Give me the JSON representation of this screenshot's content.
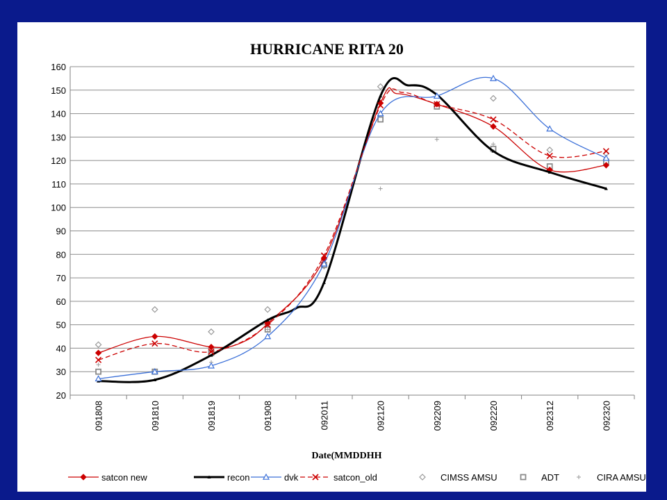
{
  "chart_data": {
    "type": "line",
    "title": "HURRICANE RITA 20",
    "xlabel": "Date(MMDDHH",
    "ylabel": "",
    "ylim": [
      20,
      160
    ],
    "yticks": [
      20,
      30,
      40,
      50,
      60,
      70,
      80,
      90,
      100,
      110,
      120,
      130,
      140,
      150,
      160
    ],
    "categories": [
      "091808",
      "091810",
      "091819",
      "091908",
      "092011",
      "092120",
      "092209",
      "092220",
      "092312",
      "092320"
    ],
    "grid": "horizontal",
    "legend_position": "bottom",
    "series": [
      {
        "name": "satcon new",
        "color": "#cc0000",
        "style": "line-marker",
        "marker": "diamond-filled",
        "dash": "solid",
        "points": [
          [
            0,
            38
          ],
          [
            1,
            45
          ],
          [
            2,
            40.5
          ],
          [
            2.5,
            42
          ],
          [
            3,
            50.5
          ],
          [
            4,
            78
          ],
          [
            5,
            144.5
          ],
          [
            5.3,
            148.5
          ],
          [
            6,
            144
          ],
          [
            7,
            134.5
          ],
          [
            8,
            116
          ],
          [
            9,
            118
          ]
        ]
      },
      {
        "name": "recon",
        "color": "#000000",
        "style": "line-marker",
        "marker": "small-triangle",
        "dash": "solid",
        "width": 3,
        "points": [
          [
            0,
            26
          ],
          [
            1,
            26.5
          ],
          [
            2,
            37
          ],
          [
            3,
            52
          ],
          [
            3.5,
            57
          ],
          [
            4,
            68
          ],
          [
            5,
            147.5
          ],
          [
            5.5,
            152
          ],
          [
            6,
            148
          ],
          [
            7,
            124
          ],
          [
            8,
            115
          ],
          [
            9,
            108
          ]
        ]
      },
      {
        "name": "dvk",
        "color": "#3a6fd8",
        "style": "line-marker",
        "marker": "triangle-open",
        "dash": "solid",
        "points": [
          [
            0,
            27
          ],
          [
            1,
            30
          ],
          [
            2,
            32.5
          ],
          [
            3,
            45
          ],
          [
            4,
            76
          ],
          [
            5,
            140
          ],
          [
            6,
            147.5
          ],
          [
            7,
            155
          ],
          [
            8,
            133.5
          ],
          [
            9,
            121
          ]
        ]
      },
      {
        "name": "satcon_old",
        "color": "#cc0000",
        "style": "line-marker",
        "marker": "x",
        "dash": "dashed",
        "points": [
          [
            0,
            35
          ],
          [
            1,
            42
          ],
          [
            2,
            38.5
          ],
          [
            3,
            50
          ],
          [
            4,
            79.5
          ],
          [
            5,
            143.5
          ],
          [
            5.4,
            149
          ],
          [
            6,
            144
          ],
          [
            7,
            137.5
          ],
          [
            8,
            122
          ],
          [
            9,
            124
          ]
        ]
      },
      {
        "name": "CIMSS AMSU",
        "color": "#999999",
        "style": "marker-only",
        "marker": "diamond-open",
        "points": [
          [
            0,
            41.5
          ],
          [
            1,
            56.5
          ],
          [
            2,
            47
          ],
          [
            3,
            56.5
          ],
          [
            4,
            75
          ],
          [
            5,
            151.5
          ],
          [
            6,
            144
          ],
          [
            7,
            146.5
          ],
          [
            8,
            124.5
          ],
          [
            9,
            123
          ]
        ]
      },
      {
        "name": "ADT",
        "color": "#8a8a8a",
        "style": "marker-only",
        "marker": "square-open",
        "points": [
          [
            0,
            30
          ],
          [
            1,
            30
          ],
          [
            2,
            38
          ],
          [
            3,
            48
          ],
          [
            4,
            75.5
          ],
          [
            5,
            137.5
          ],
          [
            6,
            143
          ],
          [
            7,
            125
          ],
          [
            8,
            117.5
          ],
          [
            9,
            119.5
          ]
        ]
      },
      {
        "name": "CIRA AMSU",
        "color": "#999999",
        "style": "marker-only",
        "marker": "plus",
        "points": [
          [
            0,
            33
          ],
          [
            2,
            34
          ],
          [
            3,
            48
          ],
          [
            5,
            108
          ],
          [
            6,
            129
          ],
          [
            7,
            127
          ],
          [
            8,
            116
          ]
        ]
      }
    ]
  }
}
